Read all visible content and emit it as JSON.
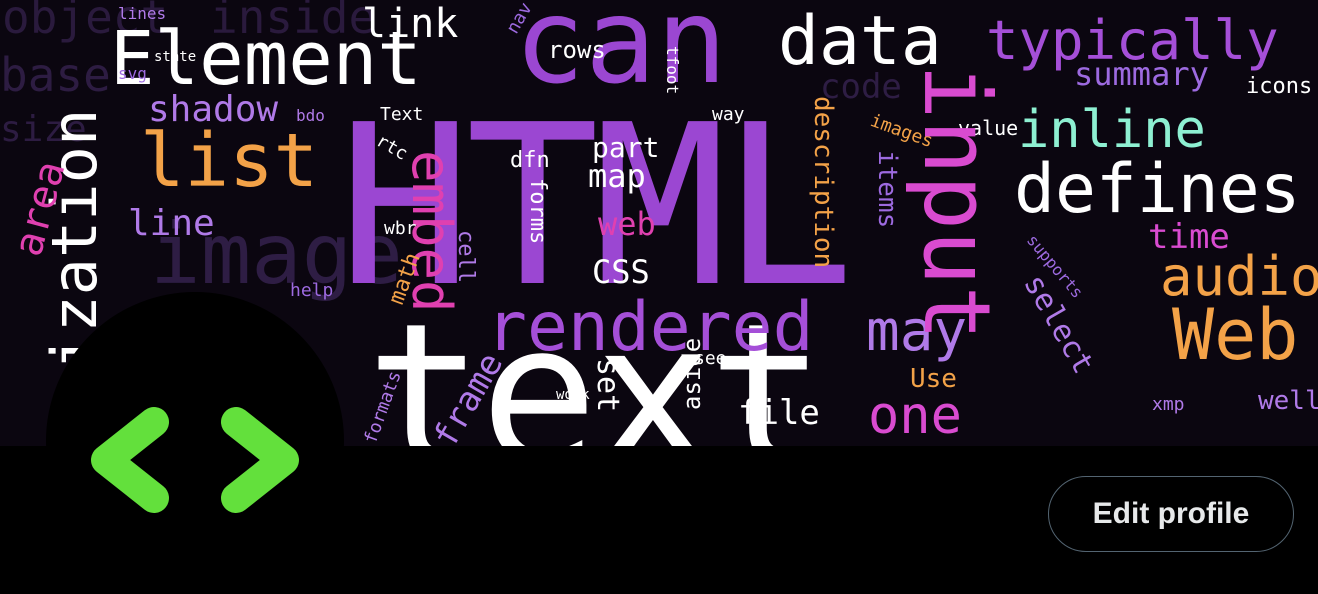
{
  "profile": {
    "edit_label": "Edit profile",
    "avatar_icon": "code-brackets-icon",
    "avatar_color": "#63e03c"
  },
  "banner": {
    "words": [
      "HTML",
      "text",
      "can",
      "Element",
      "data",
      "typically",
      "input",
      "list",
      "defines",
      "inline",
      "rendered",
      "Web",
      "audio",
      "summary",
      "link",
      "rows",
      "shadow",
      "line",
      "embed",
      "may",
      "one",
      "time",
      "CSS",
      "map",
      "part",
      "web",
      "frame",
      "file",
      "aside",
      "set",
      "description",
      "items",
      "forms",
      "dfn",
      "cell",
      "math",
      "wbr",
      "help",
      "Use",
      "xmp",
      "icons",
      "value",
      "images",
      "code",
      "select",
      "supports",
      "well",
      "see",
      "work",
      "formats",
      "tfoot",
      "Text",
      "rtc",
      "way",
      "nav",
      "lines",
      "svg",
      "state",
      "bdo",
      "ization",
      "image",
      "area",
      "inside",
      "object",
      "base",
      "size"
    ]
  }
}
